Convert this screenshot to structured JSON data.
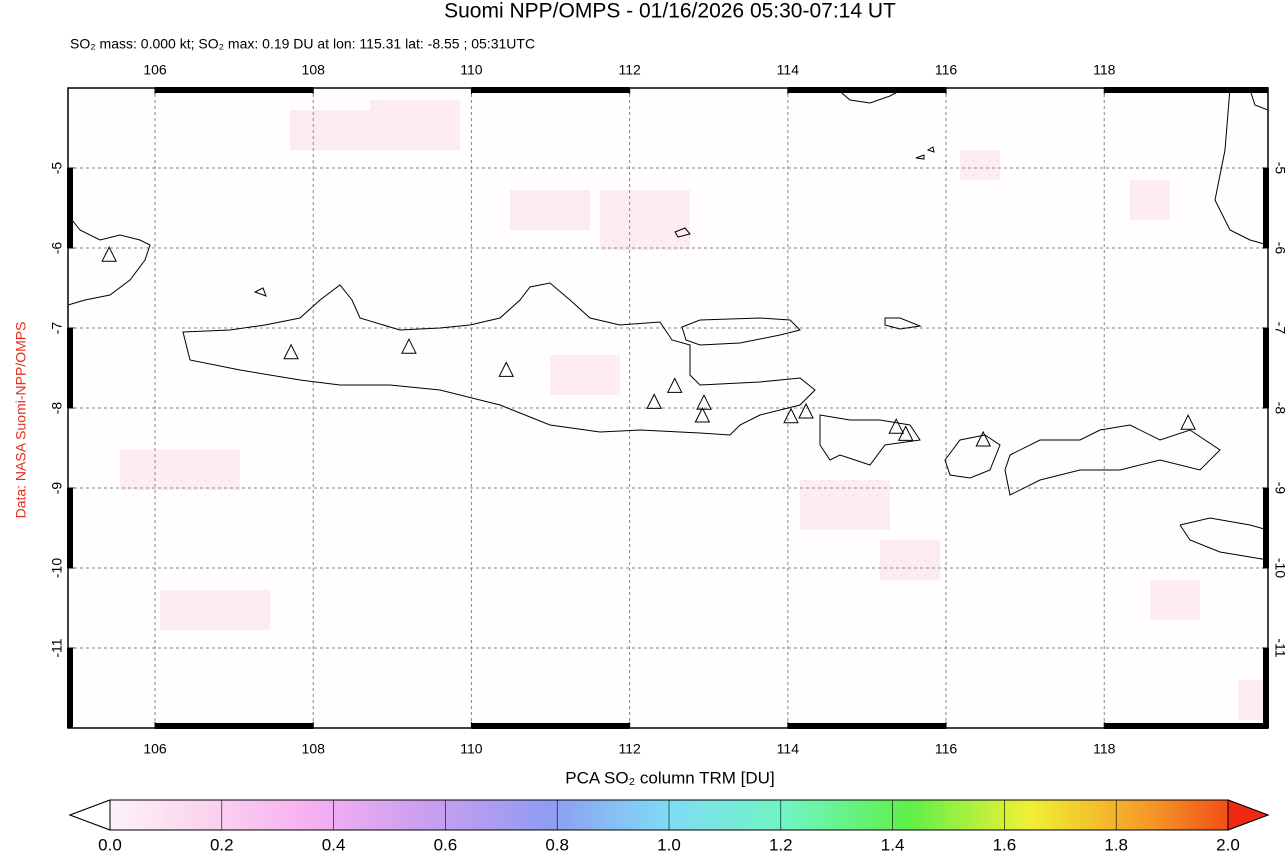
{
  "chart_data": {
    "type": "map",
    "title": "Suomi NPP/OMPS - 01/16/2026 05:30-07:14 UT",
    "subtitle": "SO₂ mass: 0.000 kt; SO₂ max: 0.19 DU at lon: 115.31 lat: -8.55 ; 05:31UTC",
    "credit": "Data: NASA Suomi-NPP/OMPS",
    "xlim": [
      104.9,
      120.07
    ],
    "ylim": [
      -12,
      -4
    ],
    "xticks": [
      106,
      108,
      110,
      112,
      114,
      116,
      118
    ],
    "yticks": [
      -5,
      -6,
      -7,
      -8,
      -9,
      -10,
      -11
    ],
    "grid": true,
    "volcanoes": {
      "lon": [
        105.42,
        107.72,
        109.21,
        110.44,
        112.31,
        112.57,
        112.94,
        112.92,
        114.04,
        114.23,
        115.37,
        115.49,
        116.47,
        119.06
      ],
      "lat": [
        -6.09,
        -7.31,
        -7.24,
        -7.53,
        -7.93,
        -7.73,
        -7.94,
        -8.1,
        -8.11,
        -8.05,
        -8.24,
        -8.33,
        -8.4,
        -8.19
      ]
    },
    "colorbar": {
      "label": "PCA SO₂ column TRM [DU]",
      "clim": [
        0,
        2
      ],
      "ticks": [
        {
          "value": 0,
          "label": "0.0"
        },
        {
          "value": 0.2,
          "label": "0.2"
        },
        {
          "value": 0.4,
          "label": "0.4"
        },
        {
          "value": 0.6,
          "label": "0.6"
        },
        {
          "value": 0.8,
          "label": "0.8"
        },
        {
          "value": 1,
          "label": "1.0"
        },
        {
          "value": 1.2,
          "label": "1.2"
        },
        {
          "value": 1.4,
          "label": "1.4"
        },
        {
          "value": 1.6,
          "label": "1.6"
        },
        {
          "value": 1.8,
          "label": "1.8"
        },
        {
          "value": 2,
          "label": "2.0"
        }
      ]
    }
  }
}
